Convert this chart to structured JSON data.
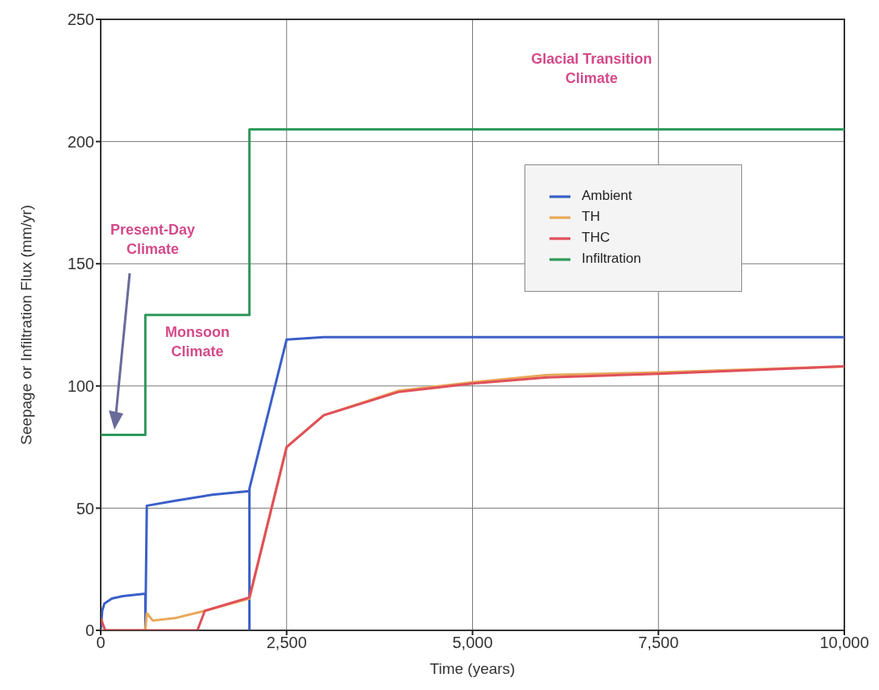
{
  "chart_data": {
    "type": "line",
    "xlabel": "Time (years)",
    "ylabel": "Seepage or Infiltration Flux (mm/yr)",
    "xlim": [
      0,
      10000
    ],
    "xticks": [
      0,
      {
        "value": 2500,
        "label": "2,500"
      },
      {
        "value": 5000,
        "label": "5,000"
      },
      {
        "value": 7500,
        "label": "7,500"
      },
      {
        "value": 10000,
        "label": "10,000"
      }
    ],
    "ylim": [
      0,
      250
    ],
    "yticks": [
      0,
      50,
      100,
      150,
      200,
      250
    ],
    "grid": true,
    "legend": "top right",
    "marker": "none",
    "line_style": "solid",
    "annotations": [
      "Glacial Transition Climate",
      "Present-Day Climate",
      "Monsoon Climate"
    ],
    "series": [
      {
        "name": "Ambient",
        "color": "#3a5fc8",
        "x": [
          0,
          20,
          50,
          150,
          300,
          600,
          600,
          620,
          1000,
          1500,
          2000,
          2000,
          2000,
          2500,
          3000,
          10000
        ],
        "values": [
          0,
          8,
          11,
          13,
          14,
          15,
          0,
          51,
          53,
          55.5,
          57,
          0,
          58,
          119,
          120,
          120
        ]
      },
      {
        "name": "TH",
        "color": "#e8a85a",
        "x": [
          0,
          600,
          620,
          700,
          1000,
          1400,
          2000,
          2500,
          3000,
          4000,
          5000,
          6000,
          7500,
          10000
        ],
        "values": [
          0,
          0,
          7,
          4,
          5,
          8,
          13,
          75,
          88,
          98,
          101.5,
          104.5,
          105.5,
          108
        ]
      },
      {
        "name": "THC",
        "color": "#e0505a",
        "x": [
          0,
          60,
          1300,
          1400,
          2000,
          2500,
          3000,
          4000,
          5000,
          6000,
          7500,
          10000
        ],
        "values": [
          5,
          0,
          0,
          8,
          13.5,
          75,
          88,
          97.5,
          101,
          103.5,
          105,
          108
        ]
      },
      {
        "name": "Infiltration",
        "type": "step",
        "color": "#2e9a5a",
        "x": [
          0,
          600,
          2000,
          10000
        ],
        "values": [
          80,
          129,
          205,
          205
        ]
      }
    ]
  }
}
